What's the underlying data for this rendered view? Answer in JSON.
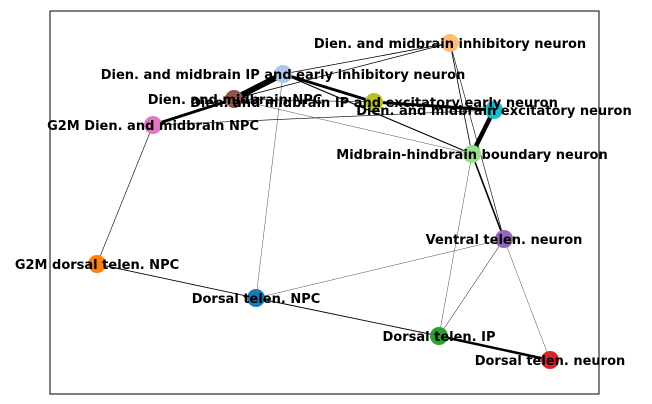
{
  "graph": {
    "nodes": [
      {
        "id": "inh",
        "label": "Dien. and midbrain inhibitory neuron",
        "color": "#ffbb78"
      },
      {
        "id": "ipinh",
        "label": "Dien. and midbrain IP and early inhibitory neuron",
        "color": "#aec7e8"
      },
      {
        "id": "npc",
        "label": "Dien. and midbrain NPC",
        "color": "#8c564b"
      },
      {
        "id": "ipexc",
        "label": "Dien. and midbrain IP and excitatory early neuron",
        "color": "#bcbd22"
      },
      {
        "id": "exc",
        "label": "Dien. and midbrain excitatory neuron",
        "color": "#17becf"
      },
      {
        "id": "g2mdien",
        "label": "G2M Dien. and midbrain NPC",
        "color": "#e377c2"
      },
      {
        "id": "mhb",
        "label": "Midbrain-hindbrain boundary neuron",
        "color": "#98df8a"
      },
      {
        "id": "ventral",
        "label": "Ventral telen. neuron",
        "color": "#9467bd"
      },
      {
        "id": "g2mdors",
        "label": "G2M dorsal telen. NPC",
        "color": "#ff7f0e"
      },
      {
        "id": "dnpc",
        "label": "Dorsal telen. NPC",
        "color": "#1f77b4"
      },
      {
        "id": "dip",
        "label": "Dorsal telen. IP",
        "color": "#2ca02c"
      },
      {
        "id": "dneuron",
        "label": "Dorsal telen. neuron",
        "color": "#d62728"
      }
    ],
    "edges": [
      {
        "source": "ipinh",
        "target": "npc",
        "weight": 6
      },
      {
        "source": "ipinh",
        "target": "ipexc",
        "weight": 3
      },
      {
        "source": "npc",
        "target": "g2mdien",
        "weight": 3
      },
      {
        "source": "ipexc",
        "target": "exc",
        "weight": 3
      },
      {
        "source": "exc",
        "target": "mhb",
        "weight": 4.5
      },
      {
        "source": "dip",
        "target": "dneuron",
        "weight": 2.5
      },
      {
        "source": "mhb",
        "target": "ventral",
        "weight": 1.6
      },
      {
        "source": "ipinh",
        "target": "mhb",
        "weight": 1.1
      },
      {
        "source": "inh",
        "target": "ipinh",
        "weight": 0.8
      },
      {
        "source": "inh",
        "target": "npc",
        "weight": 0.8
      },
      {
        "source": "inh",
        "target": "mhb",
        "weight": 0.8
      },
      {
        "source": "inh",
        "target": "ventral",
        "weight": 0.6
      },
      {
        "source": "g2mdien",
        "target": "exc",
        "weight": 0.6
      },
      {
        "source": "g2mdien",
        "target": "g2mdors",
        "weight": 0.6
      },
      {
        "source": "g2mdors",
        "target": "dnpc",
        "weight": 0.9
      },
      {
        "source": "dnpc",
        "target": "dip",
        "weight": 0.9
      },
      {
        "source": "npc",
        "target": "ipexc",
        "weight": 0.6
      },
      {
        "source": "npc",
        "target": "mhb",
        "weight": 0.35
      },
      {
        "source": "ipinh",
        "target": "dnpc",
        "weight": 0.35
      },
      {
        "source": "dnpc",
        "target": "ventral",
        "weight": 0.35
      },
      {
        "source": "mhb",
        "target": "dip",
        "weight": 0.35
      },
      {
        "source": "ventral",
        "target": "dip",
        "weight": 0.5
      },
      {
        "source": "ventral",
        "target": "dneuron",
        "weight": 0.35
      }
    ]
  }
}
